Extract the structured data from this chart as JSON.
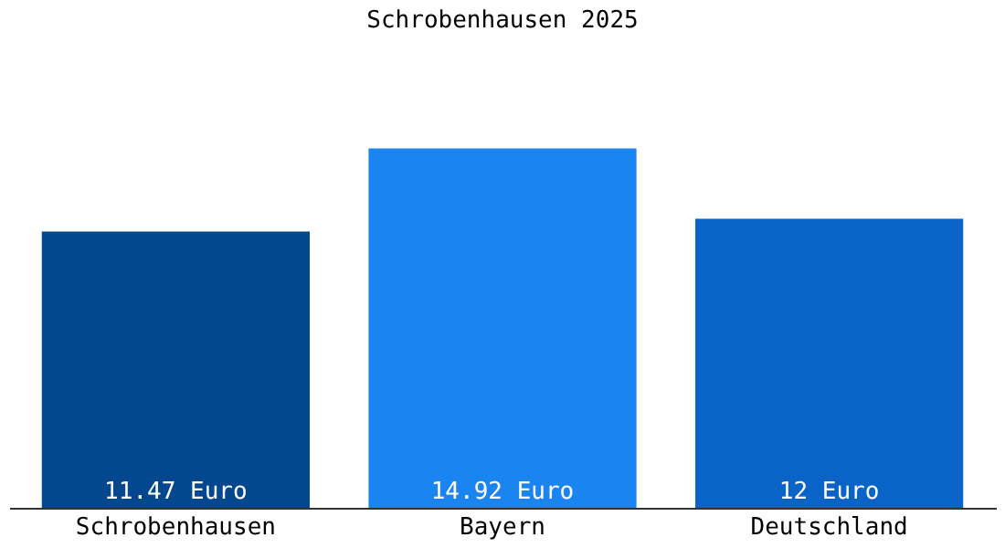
{
  "chart_data": {
    "type": "bar",
    "title": "Schrobenhausen 2025",
    "categories": [
      "Schrobenhausen",
      "Bayern",
      "Deutschland"
    ],
    "values": [
      11.47,
      14.92,
      12
    ],
    "colors": [
      "#03478f",
      "#1a85f0",
      "#0a63c6"
    ],
    "value_labels": [
      "11.47 Euro",
      "14.92 Euro",
      "12 Euro"
    ],
    "grid": false
  }
}
